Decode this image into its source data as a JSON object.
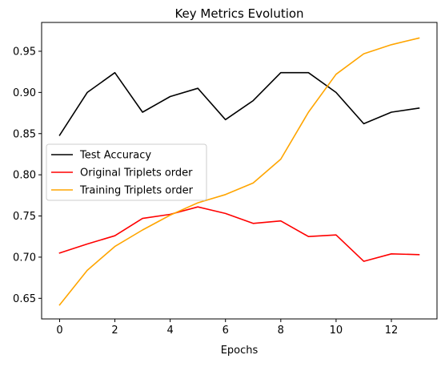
{
  "chart_data": {
    "type": "line",
    "title": "Key Metrics Evolution",
    "xlabel": "Epochs",
    "ylabel": "",
    "xlim": [
      -0.65,
      13.65
    ],
    "ylim": [
      0.625,
      0.985
    ],
    "xticks": [
      0,
      2,
      4,
      6,
      8,
      10,
      12
    ],
    "xtick_labels": [
      "0",
      "2",
      "4",
      "6",
      "8",
      "10",
      "12"
    ],
    "yticks": [
      0.65,
      0.7,
      0.75,
      0.8,
      0.85,
      0.9,
      0.95
    ],
    "ytick_labels": [
      "0.65",
      "0.70",
      "0.75",
      "0.80",
      "0.85",
      "0.90",
      "0.95"
    ],
    "grid": false,
    "legend_position": "center-left",
    "x": [
      0,
      1,
      2,
      3,
      4,
      5,
      6,
      7,
      8,
      9,
      10,
      11,
      12,
      13
    ],
    "series": [
      {
        "name": "Test Accuracy",
        "color": "#000000",
        "values": [
          0.848,
          0.9,
          0.924,
          0.876,
          0.895,
          0.905,
          0.867,
          0.89,
          0.924,
          0.924,
          0.9,
          0.862,
          0.876,
          0.881
        ]
      },
      {
        "name": "Original Triplets order",
        "color": "#ff0000",
        "values": [
          0.705,
          0.716,
          0.726,
          0.747,
          0.752,
          0.761,
          0.753,
          0.741,
          0.744,
          0.725,
          0.727,
          0.695,
          0.704,
          0.703
        ]
      },
      {
        "name": "Training Triplets order",
        "color": "#ffa500",
        "values": [
          0.642,
          0.684,
          0.713,
          0.733,
          0.751,
          0.766,
          0.776,
          0.79,
          0.819,
          0.876,
          0.922,
          0.947,
          0.958,
          0.966
        ]
      }
    ]
  }
}
